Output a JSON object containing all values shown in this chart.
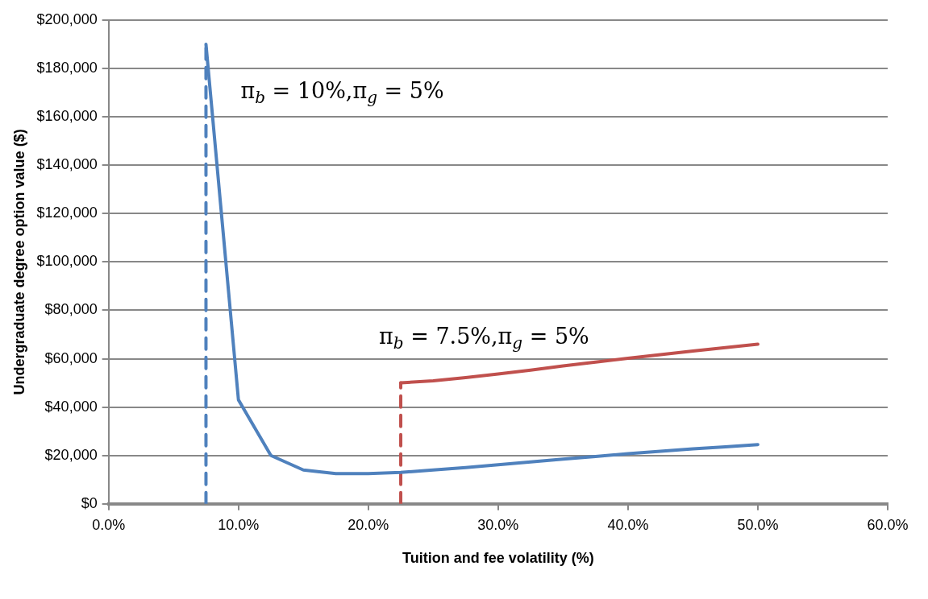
{
  "chart_data": {
    "type": "line",
    "xlabel": "Tuition and fee volatility (%)",
    "ylabel": "Undergraduate degree option value ($)",
    "xlim": [
      0,
      60
    ],
    "xticks": [
      {
        "value": 0,
        "label": "0.0%"
      },
      {
        "value": 10,
        "label": "10.0%"
      },
      {
        "value": 20,
        "label": "20.0%"
      },
      {
        "value": 30,
        "label": "30.0%"
      },
      {
        "value": 40,
        "label": "40.0%"
      },
      {
        "value": 50,
        "label": "50.0%"
      },
      {
        "value": 60,
        "label": "60.0%"
      }
    ],
    "ylim": [
      0,
      200000
    ],
    "yticks": [
      {
        "value": 0,
        "label": "$0"
      },
      {
        "value": 20000,
        "label": "$20,000"
      },
      {
        "value": 40000,
        "label": "$40,000"
      },
      {
        "value": 60000,
        "label": "$60,000"
      },
      {
        "value": 80000,
        "label": "$80,000"
      },
      {
        "value": 100000,
        "label": "$100,000"
      },
      {
        "value": 120000,
        "label": "$120,000"
      },
      {
        "value": 140000,
        "label": "$140,000"
      },
      {
        "value": 160000,
        "label": "$160,000"
      },
      {
        "value": 180000,
        "label": "$180,000"
      },
      {
        "value": 200000,
        "label": "$200,000"
      }
    ],
    "grid": "y",
    "legend": false,
    "marker": "none",
    "series": [
      {
        "name": "π$_{b}$ = 10%,π$_{g}$ = 5%",
        "color": "#4f81bd",
        "x": [
          7.5,
          10,
          12.5,
          15,
          17.5,
          20,
          22.5,
          25,
          27.5,
          30,
          32.5,
          35,
          37.5,
          40,
          42.5,
          45,
          47.5,
          50
        ],
        "values": [
          190000,
          43000,
          20000,
          14000,
          12500,
          12500,
          13000,
          14000,
          15000,
          16200,
          17300,
          18500,
          19600,
          20700,
          21700,
          22700,
          23600,
          24500
        ]
      },
      {
        "name": "π$_{b}$ = 7.5%,π$_{g}$ = 5%",
        "color": "#c0504d",
        "x": [
          22.5,
          25,
          27.5,
          30,
          32.5,
          35,
          37.5,
          40,
          42.5,
          45,
          47.5,
          50
        ],
        "values": [
          50000,
          50900,
          52200,
          53700,
          55300,
          57000,
          58600,
          60200,
          61700,
          63200,
          64600,
          66000
        ]
      },
      {
        "color": "#4f81bd",
        "line_style": "dashed",
        "x": [
          7.5,
          7.5
        ],
        "values": [
          0,
          190000
        ]
      },
      {
        "color": "#c0504d",
        "line_style": "dashed",
        "x": [
          22.5,
          22.5
        ],
        "values": [
          0,
          50000
        ]
      }
    ]
  }
}
